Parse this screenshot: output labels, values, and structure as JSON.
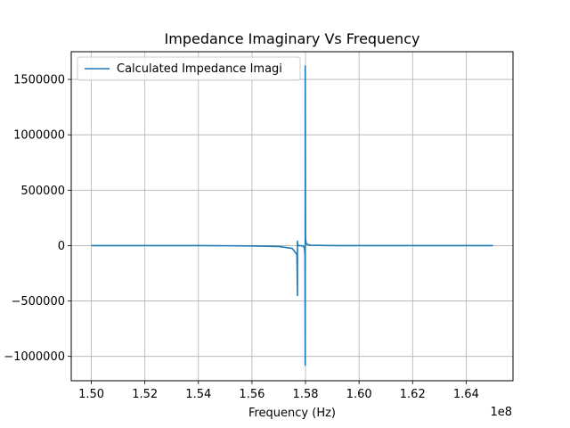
{
  "chart_data": {
    "type": "line",
    "title": "Impedance Imaginary Vs Frequency",
    "xlabel": "Frequency (Hz)",
    "ylabel": "",
    "x_offset_label": "1e8",
    "xlim": [
      1.4925,
      1.6575
    ],
    "ylim": [
      -1220000,
      1750000
    ],
    "grid": true,
    "legend_position": "top-left",
    "x_ticks": [
      1.5,
      1.52,
      1.54,
      1.56,
      1.58,
      1.6,
      1.62,
      1.64
    ],
    "x_tick_labels": [
      "1.50",
      "1.52",
      "1.54",
      "1.56",
      "1.58",
      "1.60",
      "1.62",
      "1.64"
    ],
    "y_ticks": [
      -1000000,
      -500000,
      0,
      500000,
      1000000,
      1500000
    ],
    "y_tick_labels": [
      "−1000000",
      "−500000",
      "0",
      "500000",
      "1000000",
      "1500000"
    ],
    "series": [
      {
        "name": "Calculated Impedance Imagi",
        "color": "#1f77b4",
        "x": [
          1.5,
          1.52,
          1.54,
          1.56,
          1.57,
          1.575,
          1.5768,
          1.577,
          1.577,
          1.5771,
          1.5773,
          1.5776,
          1.579,
          1.5796,
          1.5798,
          1.5799,
          1.5799,
          1.58,
          1.5801,
          1.5803,
          1.5806,
          1.582,
          1.59,
          1.62,
          1.65
        ],
        "y": [
          0,
          0,
          0,
          -3000,
          -8000,
          -25000,
          -80000,
          -450000,
          40000,
          5000,
          2000,
          0,
          -3000,
          -20000,
          -80000,
          -1080000,
          1620000,
          90000,
          40000,
          20000,
          10000,
          3000,
          0,
          0,
          0
        ]
      }
    ]
  }
}
